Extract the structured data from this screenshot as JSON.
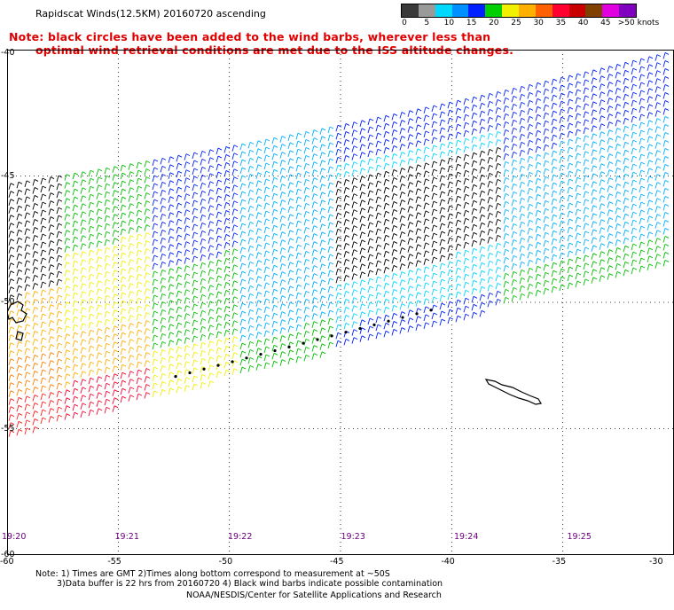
{
  "title": "Rapidscat Winds(12.5KM) 20160720 ascending",
  "note_line1": "Note: black circles have been added to the wind barbs, wherever less than",
  "note_line2": "optimal wind retrieval conditions are met due to the ISS altitude changes.",
  "legend": {
    "labels": [
      "0",
      "5",
      "10",
      "15",
      "20",
      "25",
      "30",
      "35",
      "40",
      "45",
      ">50 knots"
    ],
    "colors": [
      "#3a3a3a",
      "#9a9a9a",
      "#00d8ff",
      "#0090ff",
      "#0020ff",
      "#00d000",
      "#f0f000",
      "#ffb000",
      "#ff6000",
      "#ff0030",
      "#c80000",
      "#804000",
      "#e000e0",
      "#8000c0"
    ]
  },
  "axes": {
    "lon_labels": [
      "-60",
      "-55",
      "-50",
      "-45",
      "-40",
      "-35",
      "-30"
    ],
    "lat_labels": [
      "-40",
      "-45",
      "-50",
      "-55",
      "-60"
    ],
    "time_labels": [
      "19:20",
      "19:21",
      "19:22",
      "19:23",
      "19:24",
      "19:25"
    ]
  },
  "footer": {
    "line1": "Note: 1) Times are GMT 2)Times along bottom correspond to measurement at ~50S",
    "line2": "3)Data buffer is 22 hrs from 20160720 4) Black wind barbs indicate possible contamination",
    "line3": "NOAA/NESDIS/Center for Satellite Applications and Research"
  },
  "chart_data": {
    "type": "wind-barb map",
    "lon_range": [
      -60,
      -30
    ],
    "lat_range": [
      -60,
      -40
    ],
    "units": "knots"
  }
}
